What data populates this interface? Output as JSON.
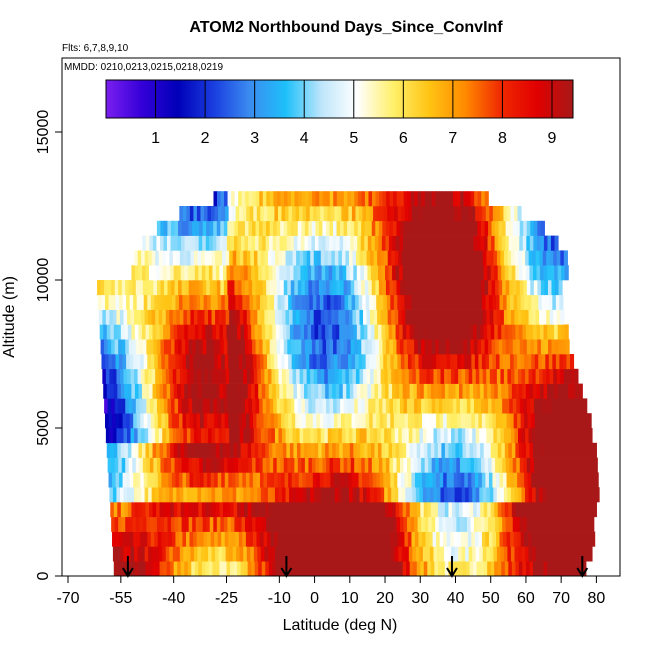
{
  "chart_data": {
    "type": "heatmap",
    "title": "ATOM2 Northbound Days_Since_ConvInf",
    "subtitle_flights": "Flts: 6,7,8,9,10",
    "subtitle_dates": "MMDD: 0210,0213,0215,0218,0219",
    "xlabel": "Latitude (deg N)",
    "ylabel": "Altitude (m)",
    "xlim": [
      -70,
      85
    ],
    "ylim": [
      0,
      17500
    ],
    "x_ticks": [
      -70,
      -55,
      -40,
      -25,
      -10,
      0,
      10,
      20,
      30,
      40,
      50,
      60,
      70,
      80
    ],
    "x_tick_labels": [
      "-70",
      "-55",
      "-40",
      "-25",
      "-10",
      "0",
      "10",
      "20",
      "30",
      "40",
      "50",
      "60",
      "70",
      "80"
    ],
    "y_ticks": [
      0,
      5000,
      10000,
      15000
    ],
    "y_tick_labels": [
      "0",
      "5000",
      "10000",
      "15000"
    ],
    "colorbar": {
      "range": [
        0,
        9
      ],
      "ticks": [
        1,
        2,
        3,
        4,
        5,
        6,
        7,
        8,
        9
      ],
      "tick_labels": [
        "1",
        "2",
        "3",
        "4",
        "5",
        "6",
        "7",
        "8",
        "9"
      ],
      "colors": [
        "#7b1ff0",
        "#3400d8",
        "#0000b8",
        "#1a3ee0",
        "#3b8cf0",
        "#1ec0fa",
        "#bfe6fb",
        "#ffffff",
        "#fff06a",
        "#ffc414",
        "#ff8a00",
        "#f02800",
        "#e00000",
        "#a81818"
      ]
    },
    "flight_markers_lat": [
      -53,
      -8,
      39,
      76
    ],
    "grid": false,
    "legend": "colorbar-top-inside"
  }
}
